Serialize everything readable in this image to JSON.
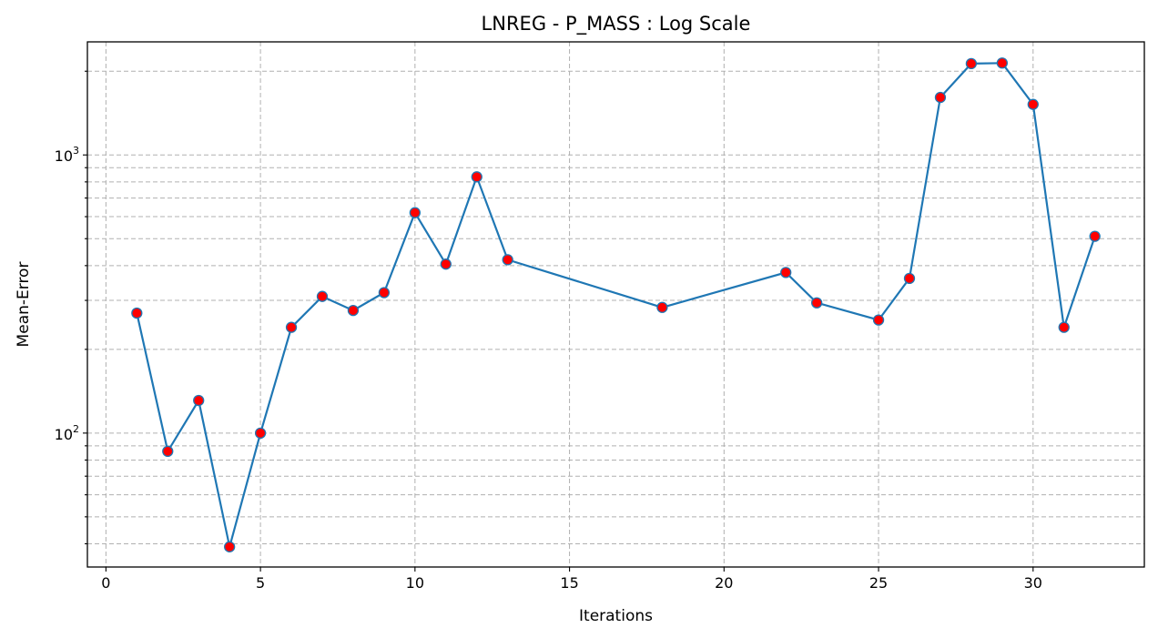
{
  "chart_data": {
    "type": "line",
    "title": "LNREG - P_MASS : Log Scale",
    "xlabel": "Iterations",
    "ylabel": "Mean-Error",
    "yscale": "log",
    "grid": true,
    "xlim": [
      -0.6,
      33.6
    ],
    "ylim": [
      33,
      2550
    ],
    "x_ticks": [
      0,
      5,
      10,
      15,
      20,
      25,
      30
    ],
    "y_major_ticks": [
      100,
      1000
    ],
    "y_major_tick_labels": [
      {
        "base": "10",
        "exp": "2"
      },
      {
        "base": "10",
        "exp": "3"
      }
    ],
    "y_minor_ticks": [
      40,
      50,
      60,
      70,
      80,
      90,
      200,
      300,
      400,
      500,
      600,
      700,
      800,
      900,
      2000
    ],
    "line_color": "#1f77b4",
    "marker_color": "#ff0000",
    "series": [
      {
        "x": [
          1,
          2,
          3,
          4,
          5,
          6,
          7,
          8,
          9,
          10,
          11,
          12,
          13,
          18,
          22,
          23,
          25,
          26,
          27,
          28,
          29,
          30,
          31,
          32
        ],
        "values": [
          270,
          86,
          131,
          39,
          100,
          240,
          310,
          276,
          320,
          620,
          405,
          834,
          420,
          283,
          378,
          294,
          255,
          360,
          1610,
          2130,
          2140,
          1520,
          240,
          510
        ]
      }
    ]
  }
}
